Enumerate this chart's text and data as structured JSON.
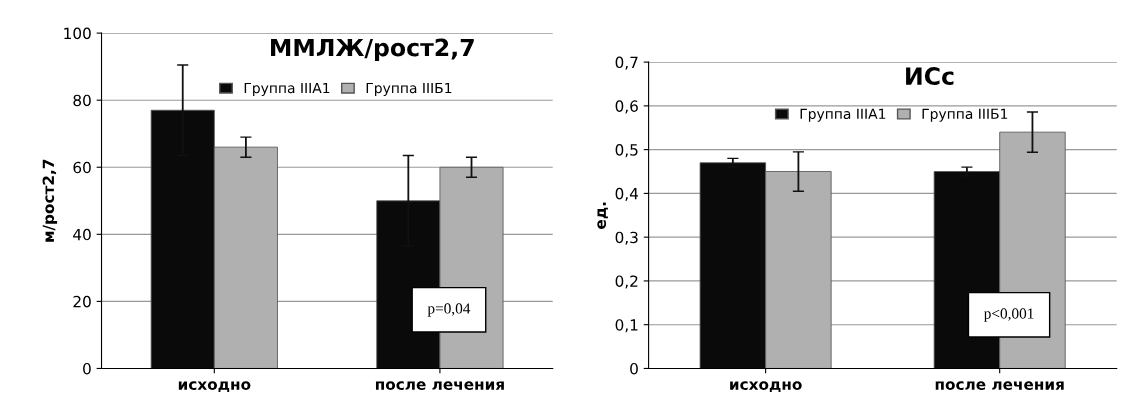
{
  "chart_data": [
    {
      "type": "bar",
      "title": "ММЛЖ/рост2,7",
      "ylabel": "м/рост2,7",
      "categories": [
        "исходно",
        "после лечения"
      ],
      "series": [
        {
          "name": "Группа IIIA1",
          "color": "#0a0a0a",
          "values": [
            77,
            50
          ],
          "errors": [
            13.5,
            13.5
          ]
        },
        {
          "name": "Группа IIIБ1",
          "color": "#b0b0b0",
          "values": [
            66,
            60
          ],
          "errors": [
            3,
            3
          ]
        }
      ],
      "ylim": [
        0,
        100
      ],
      "yticks": [
        0,
        20,
        40,
        60,
        80,
        100
      ],
      "grid": "y",
      "legend": "top",
      "annotations": [
        "p=0,04"
      ]
    },
    {
      "type": "bar",
      "title": "ИСс",
      "ylabel": "ед.",
      "categories": [
        "исходно",
        "после лечения"
      ],
      "series": [
        {
          "name": "Группа IIIA1",
          "color": "#0a0a0a",
          "values": [
            0.47,
            0.45
          ],
          "errors": [
            0.01,
            0.01
          ]
        },
        {
          "name": "Группа IIIБ1",
          "color": "#b0b0b0",
          "values": [
            0.45,
            0.54
          ],
          "errors": [
            0.045,
            0.046
          ]
        }
      ],
      "ylim": [
        0,
        0.7
      ],
      "yticks": [
        0,
        {
          "value": 0.1,
          "label": "0,1"
        },
        {
          "value": 0.2,
          "label": "0,2"
        },
        {
          "value": 0.3,
          "label": "0,3"
        },
        {
          "value": 0.4,
          "label": "0,4"
        },
        {
          "value": 0.5,
          "label": "0,5"
        },
        {
          "value": 0.6,
          "label": "0,6"
        },
        {
          "value": 0.7,
          "label": "0,7"
        }
      ],
      "grid": "y",
      "legend": "top",
      "annotations": [
        "p<0,001"
      ]
    }
  ]
}
